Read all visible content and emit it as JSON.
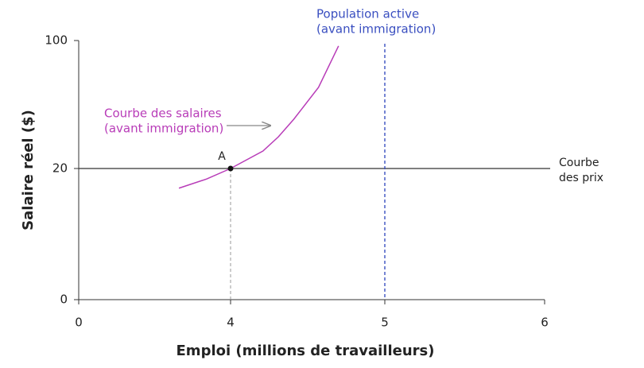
{
  "chart_data": {
    "type": "line",
    "xlabel": "Emploi (millions de travailleurs)",
    "ylabel": "Salaire réel ($)",
    "xlim": [
      0,
      6
    ],
    "ylim": [
      0,
      100
    ],
    "xticks": [
      0,
      4,
      5,
      6
    ],
    "yticks": [
      0,
      20,
      100
    ],
    "series": [
      {
        "name": "Courbe des salaires",
        "name_line2": "(avant immigration)",
        "color": "#b83cb8",
        "x": [
          2.64,
          3.37,
          4,
          4.21,
          4.31,
          4.41,
          4.57,
          4.7
        ],
        "values": [
          17,
          18.4,
          20,
          30.9,
          39.8,
          50.8,
          70.7,
          96.6
        ]
      }
    ],
    "hline": {
      "y": 20,
      "label": [
        "Courbe",
        "des prix"
      ],
      "color": "#333333"
    },
    "vline": {
      "x": 5,
      "label": [
        "Population active",
        "(avant immigration)"
      ],
      "color": "#3a4fc0"
    },
    "point": {
      "x": 4,
      "y": 20,
      "label": "A"
    }
  }
}
